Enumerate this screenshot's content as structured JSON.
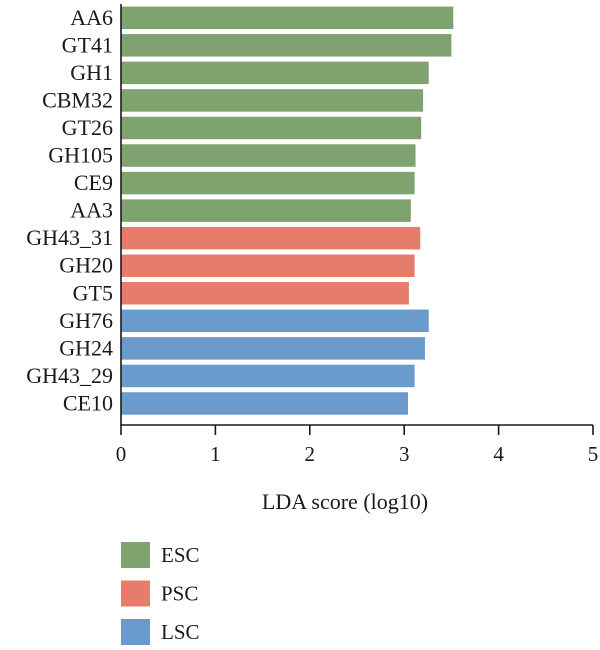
{
  "chart_data": {
    "type": "bar",
    "orientation": "horizontal",
    "categories": [
      "AA6",
      "GT41",
      "GH1",
      "CBM32",
      "GT26",
      "GH105",
      "CE9",
      "AA3",
      "GH43_31",
      "GH20",
      "GT5",
      "GH76",
      "GH24",
      "GH43_29",
      "CE10"
    ],
    "values": [
      3.52,
      3.5,
      3.26,
      3.2,
      3.18,
      3.12,
      3.11,
      3.07,
      3.17,
      3.11,
      3.05,
      3.26,
      3.22,
      3.11,
      3.04
    ],
    "groups": [
      "ESC",
      "ESC",
      "ESC",
      "ESC",
      "ESC",
      "ESC",
      "ESC",
      "ESC",
      "PSC",
      "PSC",
      "PSC",
      "LSC",
      "LSC",
      "LSC",
      "LSC"
    ],
    "xlabel": "LDA score (log10)",
    "xlim": [
      0,
      5
    ],
    "xticks": [
      0,
      1,
      2,
      3,
      4,
      5
    ],
    "grid": false,
    "legend_placement": "bottom-left",
    "legend": [
      {
        "name": "ESC",
        "color": "#7fa36f"
      },
      {
        "name": "PSC",
        "color": "#e67c6c"
      },
      {
        "name": "LSC",
        "color": "#6b9bcd"
      }
    ]
  }
}
